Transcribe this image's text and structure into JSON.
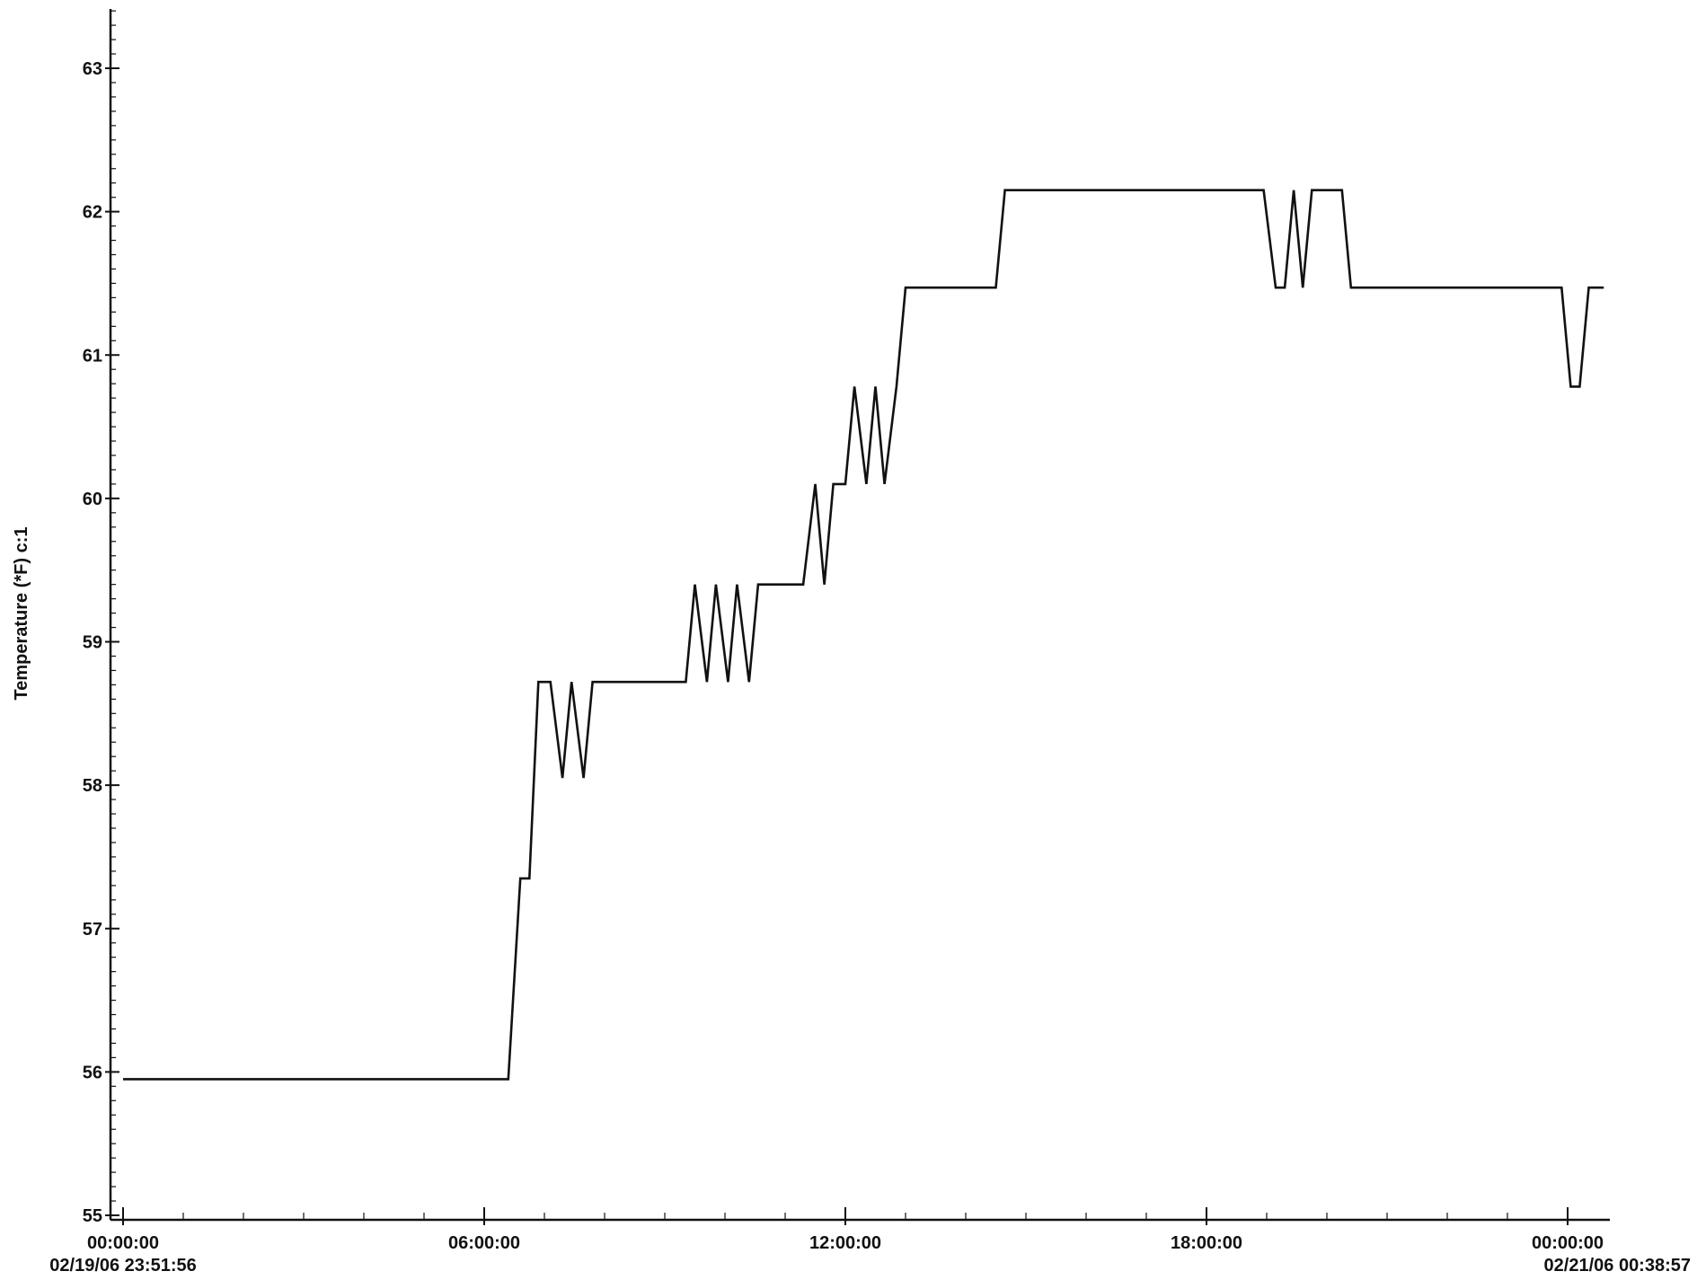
{
  "chart_data": {
    "type": "line",
    "title": "",
    "ylabel": "Temperature (*F) c:1",
    "xlabel": "",
    "ylim": [
      55,
      63.4
    ],
    "y_ticks": [
      55,
      56,
      57,
      58,
      59,
      60,
      61,
      62,
      63
    ],
    "x_range_hours": [
      0,
      24.75
    ],
    "x_ticks": [
      {
        "hour": 0,
        "label": "00:00:00",
        "sublabel": "02/19/06 23:51:56"
      },
      {
        "hour": 6,
        "label": "06:00:00",
        "sublabel": ""
      },
      {
        "hour": 12,
        "label": "12:00:00",
        "sublabel": ""
      },
      {
        "hour": 18,
        "label": "18:00:00",
        "sublabel": ""
      },
      {
        "hour": 24,
        "label": "00:00:00",
        "sublabel": "02/21/06 00:38:57"
      }
    ],
    "grid": false,
    "series": [
      {
        "name": "",
        "x": [
          0,
          6.4,
          6.6,
          6.75,
          6.9,
          7.1,
          7.3,
          7.45,
          7.65,
          7.8,
          8.0,
          8.1,
          9.35,
          9.5,
          9.7,
          9.85,
          10.05,
          10.2,
          10.4,
          10.55,
          11.3,
          11.5,
          11.65,
          11.8,
          12.0,
          12.15,
          12.35,
          12.5,
          12.65,
          12.85,
          13.0,
          14.5,
          14.65,
          18.95,
          19.15,
          19.3,
          19.45,
          19.6,
          19.75,
          20.25,
          20.4,
          23.9,
          24.05,
          24.2,
          24.35,
          24.6
        ],
        "y": [
          55.95,
          55.95,
          57.35,
          57.35,
          58.72,
          58.72,
          58.05,
          58.72,
          58.05,
          58.72,
          58.72,
          58.72,
          58.72,
          59.4,
          58.72,
          59.4,
          58.72,
          59.4,
          58.72,
          59.4,
          59.4,
          60.1,
          59.4,
          60.1,
          60.1,
          60.78,
          60.1,
          60.78,
          60.1,
          60.78,
          61.47,
          61.47,
          62.15,
          62.15,
          61.47,
          61.47,
          62.15,
          61.47,
          62.15,
          62.15,
          61.47,
          61.47,
          60.78,
          60.78,
          61.47,
          61.47
        ]
      }
    ]
  }
}
